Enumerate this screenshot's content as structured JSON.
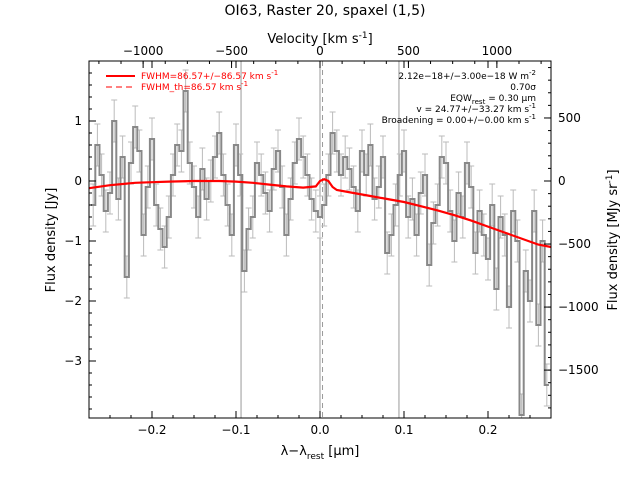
{
  "chart_data": {
    "type": "line",
    "title": "OI63, Raster 20, spaxel (1,5)",
    "xlabel": "λ−λ",
    "xlabel_sub": "rest",
    "xlabel_unit": " [μm]",
    "ylabel": "Flux density [Jy]",
    "top_axis_label": "Velocity [km s",
    "top_axis_label_exp": "-1",
    "top_axis_label_end": "]",
    "right_axis_label": "Flux density [MJy sr",
    "right_axis_label_exp": "-1",
    "right_axis_label_end": "]",
    "xlim": [
      -0.275,
      0.275
    ],
    "ylim": [
      -3.95,
      2.0
    ],
    "top_xlim": [
      -1306,
      1306
    ],
    "right_ylim": [
      -1880,
      952
    ],
    "x_ticks": [
      -0.2,
      -0.1,
      0.0,
      0.1,
      0.2
    ],
    "x_tick_labels": [
      "−0.2",
      "−0.1",
      "0.0",
      "0.1",
      "0.2"
    ],
    "y_ticks": [
      1,
      0,
      -1,
      -2,
      -3
    ],
    "y_tick_labels": [
      "1",
      "0",
      "−1",
      "−2",
      "−3"
    ],
    "top_ticks": [
      -1000,
      -500,
      0,
      500,
      1000
    ],
    "top_tick_labels": [
      "−1000",
      "−500",
      "0",
      "500",
      "1000"
    ],
    "right_ticks": [
      500,
      0,
      -500,
      -1000,
      -1500
    ],
    "right_tick_labels": [
      "500",
      "0",
      "−500",
      "−1000",
      "−1500"
    ],
    "vertical_lines": [
      -0.094,
      0.0,
      0.094
    ],
    "legend": {
      "placement": "top-left",
      "entries": [
        {
          "label": "FWHM=86.57+/−86.57 km s",
          "exp": "-1",
          "style": "solid",
          "color": "#ff0000"
        },
        {
          "label": "FWHM_th=86.57 km s",
          "exp": "-1",
          "style": "dashed",
          "color": "#ff0000"
        }
      ]
    },
    "annotations": [
      {
        "text": "2.12e−18+/−3.00e−18 W m",
        "exp": "-2"
      },
      {
        "text": "0.70σ"
      },
      {
        "text": "EQW",
        "sub": "rest",
        "text2": " = 0.30 μm"
      },
      {
        "text": "v = 24.77+/−33.27 km s",
        "exp": "-1"
      },
      {
        "text": "Broadening = 0.00+/−0.00 km s",
        "exp": "-1"
      }
    ],
    "series": [
      {
        "kind": "spectrum",
        "style": "step",
        "color": "#888888",
        "x": [
          -0.27,
          -0.265,
          -0.26,
          -0.255,
          -0.25,
          -0.245,
          -0.24,
          -0.235,
          -0.23,
          -0.225,
          -0.22,
          -0.215,
          -0.21,
          -0.205,
          -0.2,
          -0.195,
          -0.19,
          -0.185,
          -0.18,
          -0.175,
          -0.17,
          -0.165,
          -0.16,
          -0.155,
          -0.15,
          -0.145,
          -0.14,
          -0.135,
          -0.13,
          -0.125,
          -0.12,
          -0.115,
          -0.11,
          -0.105,
          -0.1,
          -0.095,
          -0.09,
          -0.085,
          -0.08,
          -0.075,
          -0.07,
          -0.065,
          -0.06,
          -0.055,
          -0.05,
          -0.045,
          -0.04,
          -0.035,
          -0.03,
          -0.025,
          -0.02,
          -0.015,
          -0.01,
          -0.005,
          0.0,
          0.005,
          0.01,
          0.015,
          0.02,
          0.025,
          0.03,
          0.035,
          0.04,
          0.045,
          0.05,
          0.055,
          0.06,
          0.065,
          0.07,
          0.075,
          0.08,
          0.085,
          0.09,
          0.095,
          0.1,
          0.105,
          0.11,
          0.115,
          0.12,
          0.125,
          0.13,
          0.135,
          0.14,
          0.145,
          0.15,
          0.155,
          0.16,
          0.165,
          0.17,
          0.175,
          0.18,
          0.185,
          0.19,
          0.195,
          0.2,
          0.205,
          0.21,
          0.215,
          0.22,
          0.225,
          0.23,
          0.235,
          0.24,
          0.245,
          0.25,
          0.255,
          0.26,
          0.265,
          0.27
        ],
        "y": [
          -0.4,
          0.6,
          0.1,
          -0.5,
          -0.2,
          1.0,
          -0.3,
          0.4,
          -1.6,
          0.3,
          0.9,
          0.5,
          -0.9,
          -0.1,
          0.7,
          -0.4,
          -0.8,
          -1.1,
          -0.6,
          0.1,
          0.6,
          0.5,
          1.5,
          0.3,
          -0.1,
          -0.6,
          0.2,
          -0.3,
          0.0,
          0.4,
          0.8,
          0.1,
          -0.4,
          -0.9,
          0.6,
          0.1,
          -1.5,
          -0.8,
          -0.6,
          0.3,
          0.1,
          -0.2,
          -0.5,
          0.2,
          0.5,
          -0.1,
          -0.9,
          -0.3,
          0.3,
          0.7,
          0.4,
          0.1,
          -0.3,
          -0.5,
          -0.6,
          -0.4,
          0.1,
          0.8,
          0.5,
          0.1,
          0.4,
          0.2,
          -0.1,
          -0.5,
          0.5,
          0.1,
          0.6,
          -0.3,
          -0.1,
          0.4,
          -1.2,
          -0.9,
          -0.4,
          0.1,
          0.5,
          -0.6,
          -0.3,
          -0.9,
          -0.2,
          0.1,
          -1.4,
          -0.7,
          -0.4,
          0.4,
          0.3,
          -0.5,
          -1.0,
          -0.2,
          -0.6,
          0.3,
          -0.1,
          -1.2,
          -0.5,
          -0.9,
          -1.3,
          -0.4,
          -1.8,
          -0.6,
          -0.9,
          -2.1,
          -0.5,
          -1.0,
          -3.9,
          -1.5,
          -2.0,
          -0.5,
          -2.4,
          -1.0,
          -3.4
        ],
        "error": 0.35
      },
      {
        "kind": "fit",
        "style": "solid",
        "color": "#ff0000",
        "x": [
          -0.275,
          -0.25,
          -0.22,
          -0.2,
          -0.18,
          -0.15,
          -0.12,
          -0.1,
          -0.08,
          -0.06,
          -0.04,
          -0.02,
          -0.005,
          0.0,
          0.005,
          0.01,
          0.015,
          0.02,
          0.04,
          0.06,
          0.08,
          0.1,
          0.12,
          0.14,
          0.16,
          0.18,
          0.2,
          0.22,
          0.24,
          0.26,
          0.275
        ],
        "y": [
          -0.12,
          -0.07,
          -0.03,
          -0.02,
          -0.01,
          0.0,
          0.0,
          -0.01,
          -0.03,
          -0.06,
          -0.09,
          -0.11,
          -0.09,
          0.0,
          0.03,
          0.0,
          -0.1,
          -0.15,
          -0.2,
          -0.25,
          -0.3,
          -0.35,
          -0.42,
          -0.49,
          -0.57,
          -0.66,
          -0.76,
          -0.86,
          -0.96,
          -1.06,
          -1.1
        ]
      }
    ]
  }
}
